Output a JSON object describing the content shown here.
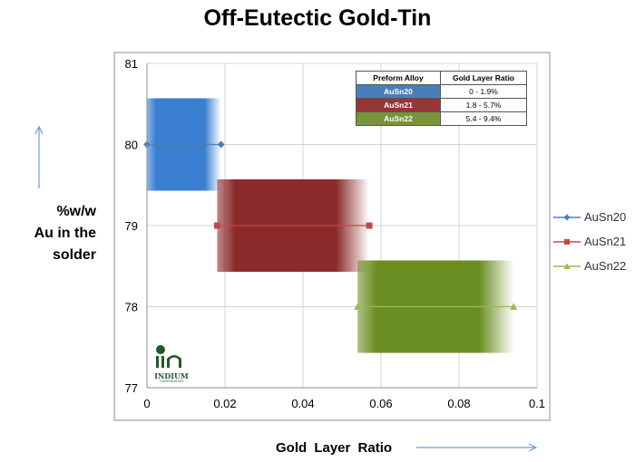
{
  "chart_data": {
    "type": "scatter",
    "title": "Off-Eutectic Gold-Tin",
    "xlabel": "Gold Layer Ratio",
    "ylabel_lines": [
      "%w/w",
      "Au in the",
      "solder"
    ],
    "xlim": [
      0,
      0.1
    ],
    "ylim": [
      77,
      81
    ],
    "x_ticks": [
      "0",
      "0.02",
      "0.04",
      "0.06",
      "0.08",
      "0.1"
    ],
    "y_ticks": [
      "77",
      "78",
      "79",
      "80",
      "81"
    ],
    "grid": true,
    "legend": "right",
    "series": [
      {
        "name": "AuSn20",
        "color": "#4a7ebb",
        "marker": "diamond",
        "points": [
          [
            0,
            80
          ],
          [
            0.019,
            80
          ]
        ],
        "band": {
          "x": [
            0,
            0.019
          ],
          "y": [
            79.43,
            80.57
          ]
        }
      },
      {
        "name": "AuSn21",
        "color": "#be4b48",
        "marker": "square",
        "points": [
          [
            0.018,
            79
          ],
          [
            0.057,
            79
          ]
        ],
        "band": {
          "x": [
            0.018,
            0.057
          ],
          "y": [
            78.43,
            79.57
          ]
        }
      },
      {
        "name": "AuSn22",
        "color": "#98b954",
        "marker": "triangle",
        "points": [
          [
            0.054,
            78
          ],
          [
            0.094,
            78
          ]
        ],
        "band": {
          "x": [
            0.054,
            0.094
          ],
          "y": [
            77.43,
            78.57
          ]
        }
      }
    ],
    "table": {
      "headers": [
        "Preform Alloy",
        "Gold Layer Ratio"
      ],
      "rows": [
        {
          "alloy": "AuSn20",
          "ratio": "0 - 1.9%",
          "color": "#4a7ebb"
        },
        {
          "alloy": "AuSn21",
          "ratio": "1.8 - 5.7%",
          "color": "#953735"
        },
        {
          "alloy": "AuSn22",
          "ratio": "5.4 - 9.4%",
          "color": "#77933c"
        }
      ]
    },
    "band_colors": [
      "#3a7fd0",
      "#8b2a2a",
      "#6b8e23"
    ]
  },
  "logo": {
    "name": "INDIUM",
    "sub": "CORPORATION",
    "color": "#1f5a2c"
  },
  "arrow_color": "#6f9bd8"
}
